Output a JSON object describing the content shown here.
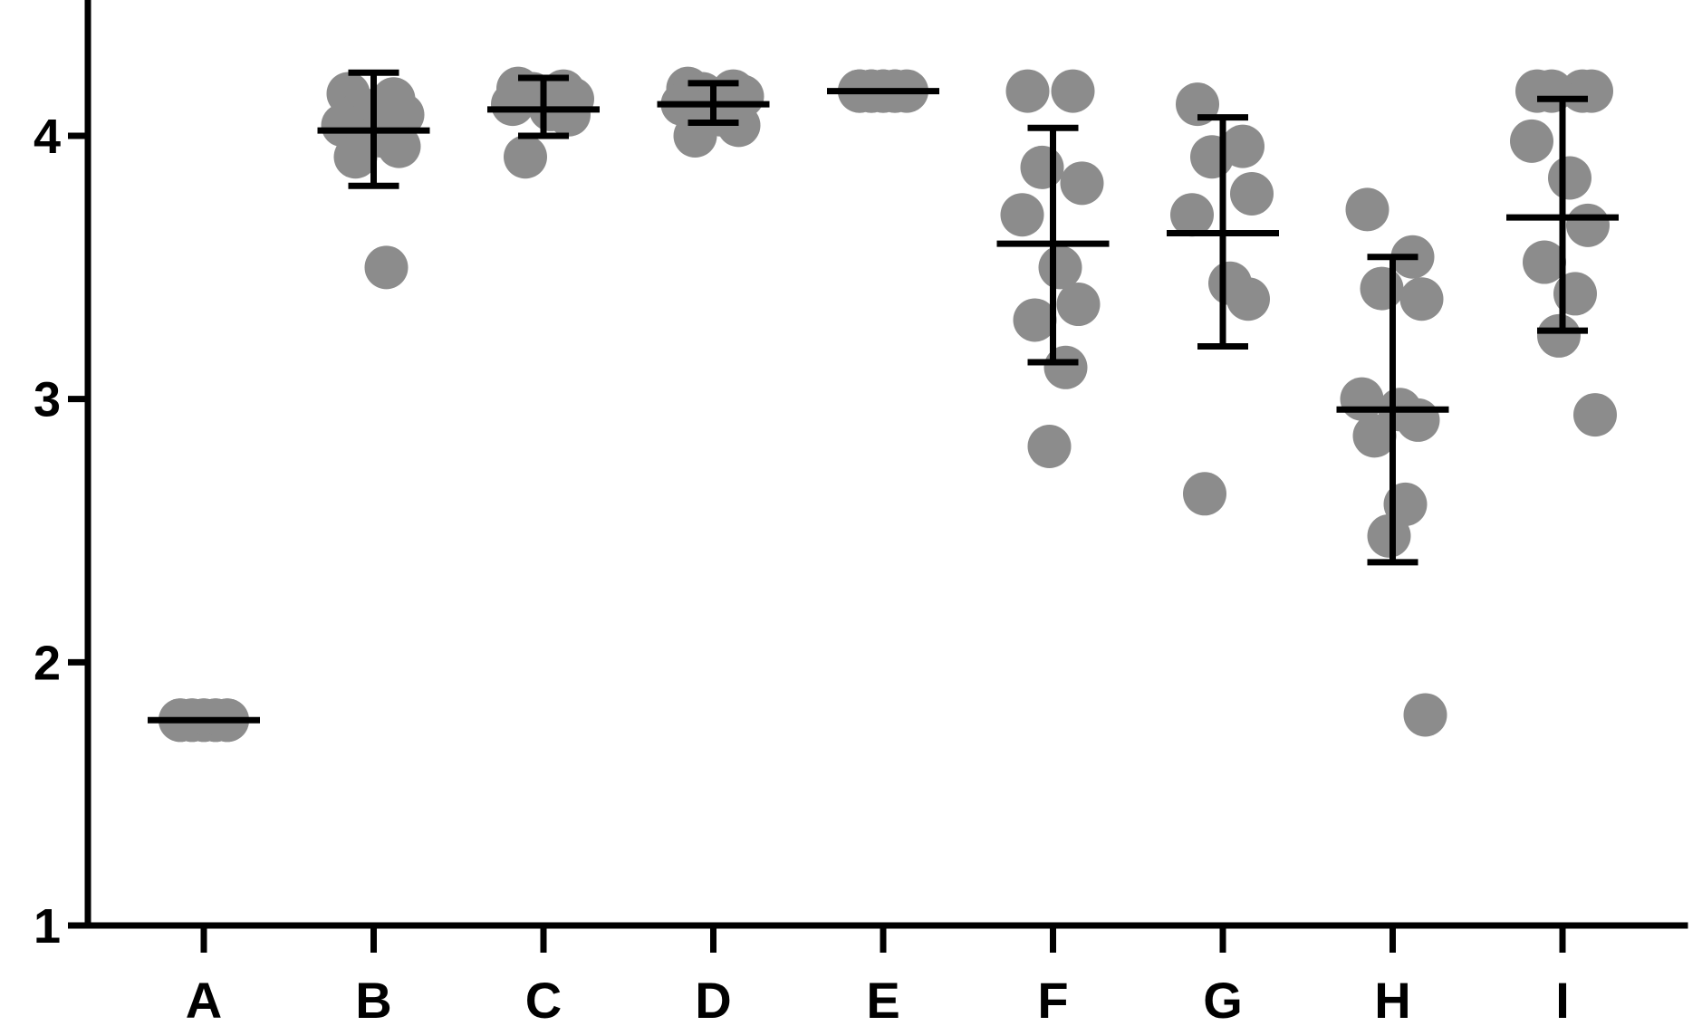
{
  "chart_data": {
    "type": "scatter",
    "title": "",
    "xlabel": "",
    "ylabel": "",
    "ylim": [
      1,
      4.4
    ],
    "yticks": [
      1,
      2,
      3,
      4
    ],
    "grid": false,
    "categories": [
      "A",
      "B",
      "C",
      "D",
      "E",
      "F",
      "G",
      "H",
      "I"
    ],
    "groups": [
      {
        "label": "A",
        "mean": 1.78,
        "sd_low": 1.78,
        "sd_high": 1.78,
        "points": [
          1.78,
          1.78,
          1.78,
          1.78,
          1.78,
          1.78,
          1.78,
          1.78,
          1.78,
          1.78
        ]
      },
      {
        "label": "B",
        "mean": 4.02,
        "sd_low": 3.81,
        "sd_high": 4.24,
        "points": [
          4.16,
          4.14,
          4.1,
          4.08,
          4.04,
          4.0,
          3.96,
          3.92,
          3.5
        ]
      },
      {
        "label": "C",
        "mean": 4.1,
        "sd_low": 4.0,
        "sd_high": 4.22,
        "points": [
          4.18,
          4.17,
          4.16,
          4.14,
          4.12,
          4.1,
          4.08,
          3.92
        ]
      },
      {
        "label": "D",
        "mean": 4.12,
        "sd_low": 4.05,
        "sd_high": 4.2,
        "points": [
          4.18,
          4.17,
          4.16,
          4.15,
          4.12,
          4.08,
          4.04,
          4.0
        ]
      },
      {
        "label": "E",
        "mean": 4.17,
        "sd_low": 4.17,
        "sd_high": 4.17,
        "points": [
          4.17,
          4.17,
          4.17,
          4.17,
          4.17,
          4.17,
          4.17,
          4.17,
          4.17
        ]
      },
      {
        "label": "F",
        "mean": 3.59,
        "sd_low": 3.14,
        "sd_high": 4.03,
        "points": [
          4.17,
          4.17,
          3.88,
          3.82,
          3.7,
          3.5,
          3.36,
          3.3,
          3.12,
          2.82
        ]
      },
      {
        "label": "G",
        "mean": 3.63,
        "sd_low": 3.2,
        "sd_high": 4.07,
        "points": [
          4.12,
          3.96,
          3.92,
          3.78,
          3.7,
          3.44,
          3.38,
          2.64
        ]
      },
      {
        "label": "H",
        "mean": 2.96,
        "sd_low": 2.38,
        "sd_high": 3.54,
        "points": [
          3.72,
          3.54,
          3.42,
          3.38,
          3.0,
          2.96,
          2.92,
          2.86,
          2.6,
          2.48,
          1.8
        ]
      },
      {
        "label": "I",
        "mean": 3.69,
        "sd_low": 3.26,
        "sd_high": 4.14,
        "points": [
          4.17,
          4.17,
          4.17,
          4.17,
          3.98,
          3.84,
          3.66,
          3.52,
          3.4,
          3.24,
          2.94
        ]
      }
    ]
  }
}
